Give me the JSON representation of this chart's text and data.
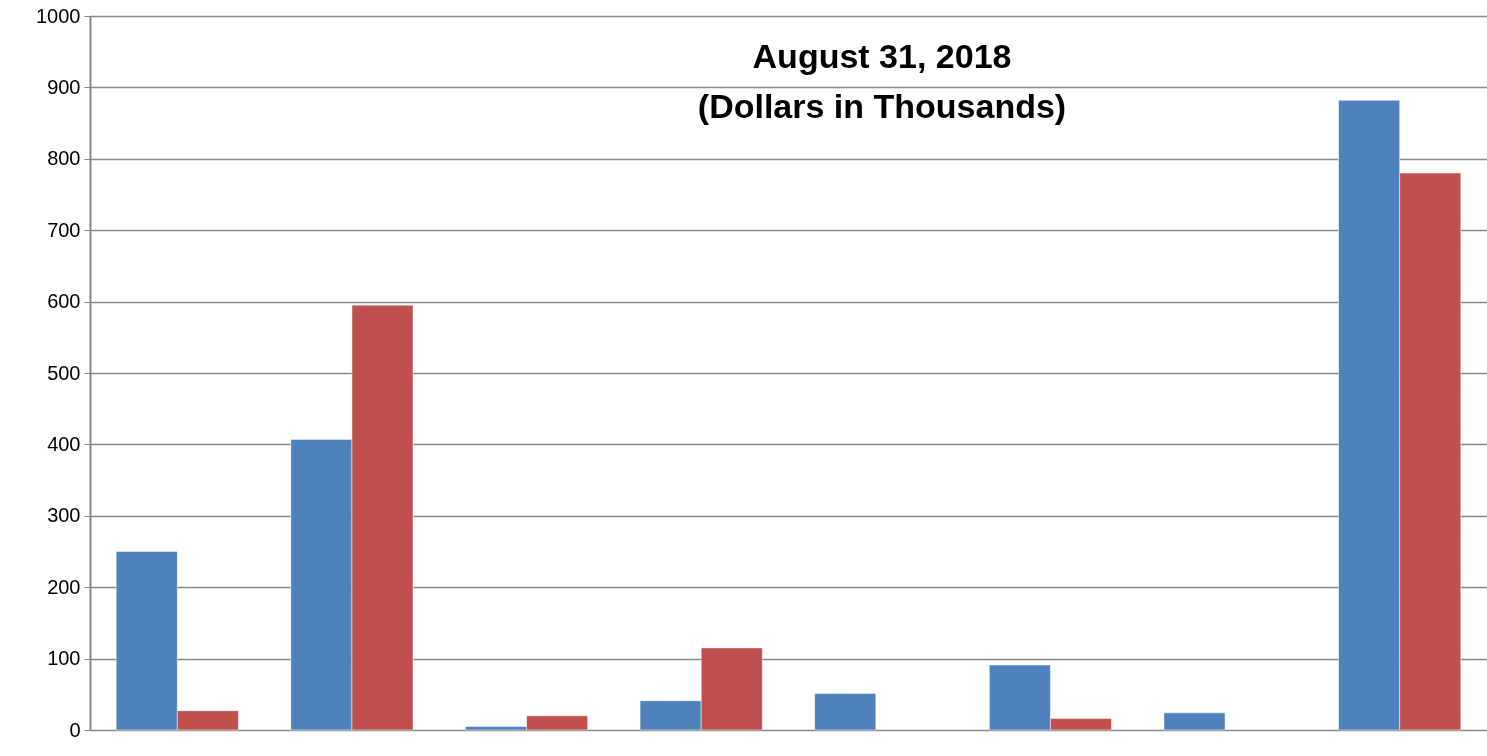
{
  "chart_data": {
    "type": "bar",
    "title": "August 31, 2018",
    "subtitle": "(Dollars in Thousands)",
    "categories": [
      null,
      null,
      null,
      null,
      null,
      null,
      null,
      null
    ],
    "series": [
      {
        "color": "#4f81bd",
        "values": [
          250,
          407,
          5,
          41,
          51,
          91,
          24,
          882
        ]
      },
      {
        "color": "#c0504d",
        "values": [
          27,
          595,
          20,
          115,
          null,
          16,
          null,
          780
        ]
      }
    ],
    "ylim": [
      0,
      1000
    ],
    "yticks": [
      0,
      100,
      200,
      300,
      400,
      500,
      600,
      700,
      800,
      900,
      1000
    ],
    "grid": "y",
    "tick_labels": "y"
  }
}
